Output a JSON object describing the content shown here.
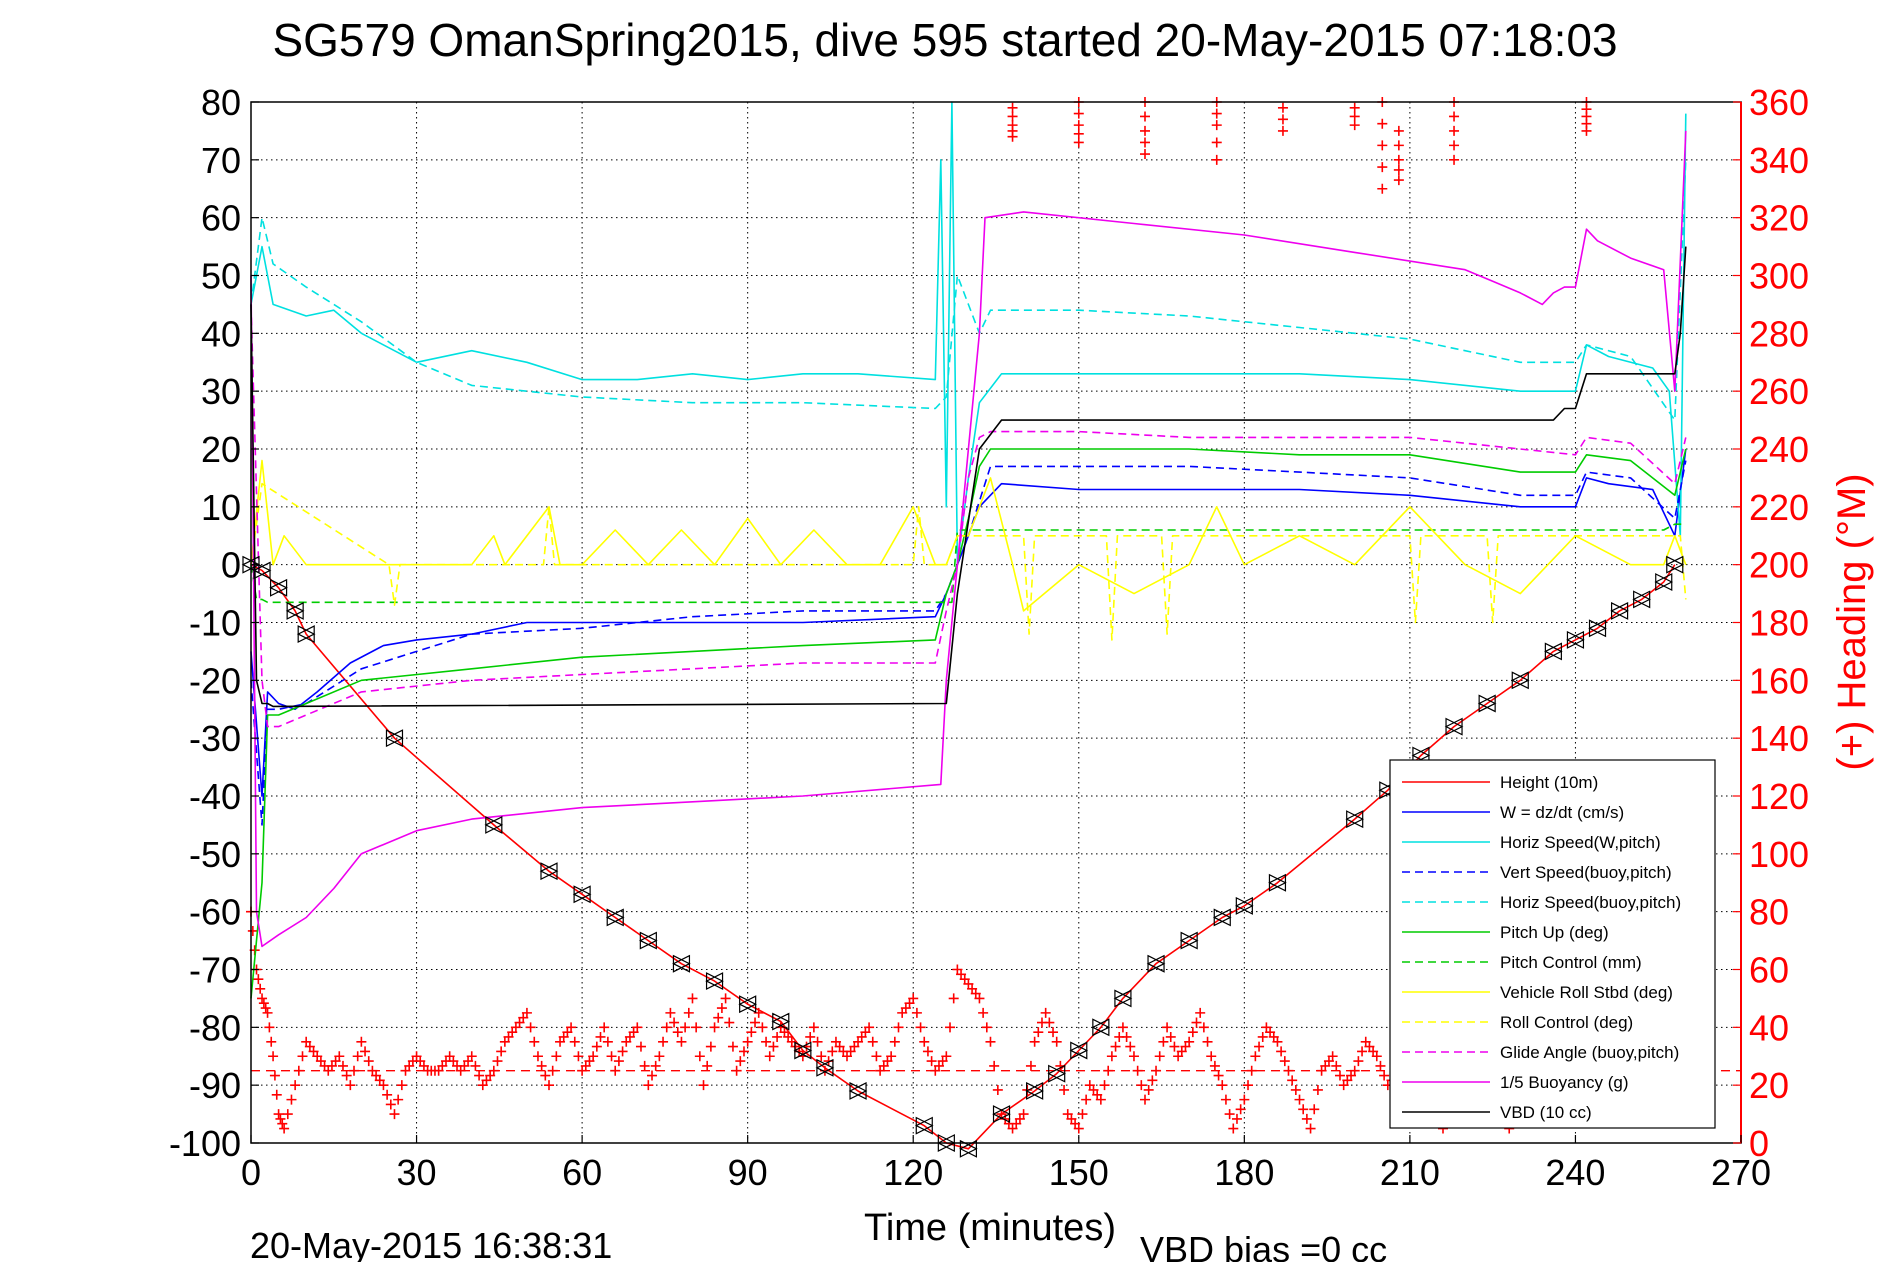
{
  "chart_data": {
    "type": "line",
    "title": "SG579 OmanSpring2015, dive 595 started 20-May-2015 07:18:03",
    "xlabel": "Time (minutes)",
    "ylabel_right": "(+) Heading (°M)",
    "footer_left": "20-May-2015 16:38:31",
    "footer_right": "VBD bias =0 cc",
    "xlim": [
      0,
      270
    ],
    "ylim": [
      -100,
      80
    ],
    "ylim_right": [
      0,
      360
    ],
    "grid": true,
    "legend_position": "lower-right",
    "xticks": [
      "0",
      "30",
      "60",
      "90",
      "120",
      "150",
      "180",
      "210",
      "240",
      "270"
    ],
    "yticks": [
      "80",
      "70",
      "60",
      "50",
      "40",
      "30",
      "20",
      "10",
      "0",
      "-10",
      "-20",
      "-30",
      "-40",
      "-50",
      "-60",
      "-70",
      "-80",
      "-90",
      "-100"
    ],
    "yticks_right": [
      "360",
      "340",
      "320",
      "300",
      "280",
      "260",
      "240",
      "220",
      "200",
      "180",
      "160",
      "140",
      "120",
      "100",
      "80",
      "60",
      "40",
      "20",
      "0"
    ],
    "series": [
      {
        "name": "Height (10m)",
        "color": "#ff0000",
        "dash": "solid",
        "marker": "triangle",
        "x": [
          0,
          2,
          5,
          8,
          10,
          26,
          44,
          54,
          60,
          66,
          72,
          78,
          84,
          90,
          96,
          100,
          104,
          110,
          122,
          126,
          130,
          136,
          142,
          146,
          150,
          154,
          158,
          164,
          170,
          176,
          180,
          186,
          200,
          206,
          212,
          218,
          224,
          230,
          236,
          240,
          244,
          248,
          252,
          256,
          258
        ],
        "y": [
          0,
          -1,
          -4,
          -8,
          -12,
          -30,
          -45,
          -53,
          -57,
          -61,
          -65,
          -69,
          -72,
          -76,
          -79,
          -84,
          -87,
          -91,
          -97,
          -100,
          -101,
          -95,
          -91,
          -88,
          -84,
          -80,
          -75,
          -69,
          -65,
          -61,
          -59,
          -55,
          -44,
          -39,
          -33,
          -28,
          -24,
          -20,
          -15,
          -13,
          -11,
          -8,
          -6,
          -3,
          0
        ]
      },
      {
        "name": "W = dz/dt (cm/s)",
        "color": "#0000ff",
        "dash": "solid",
        "x": [
          0,
          2,
          3,
          5,
          8,
          12,
          18,
          24,
          30,
          40,
          50,
          60,
          80,
          100,
          124,
          126,
          128,
          132,
          136,
          150,
          170,
          190,
          210,
          230,
          240,
          242,
          246,
          254,
          258,
          260
        ],
        "y": [
          -15,
          -40,
          -22,
          -24,
          -25,
          -22,
          -17,
          -14,
          -13,
          -12,
          -10,
          -10,
          -10,
          -10,
          -9,
          -5,
          0,
          10,
          14,
          13,
          13,
          13,
          12,
          10,
          10,
          15,
          14,
          13,
          5,
          20
        ]
      },
      {
        "name": "Horiz Speed(W,pitch)",
        "color": "#00e0e0",
        "dash": "solid",
        "x": [
          0,
          2,
          4,
          10,
          15,
          20,
          30,
          40,
          50,
          60,
          70,
          80,
          90,
          100,
          110,
          124,
          125,
          126,
          127,
          128,
          130,
          132,
          136,
          150,
          170,
          190,
          210,
          230,
          240,
          242,
          246,
          254,
          257,
          259,
          260
        ],
        "y": [
          45,
          55,
          45,
          43,
          44,
          40,
          35,
          37,
          35,
          32,
          32,
          33,
          32,
          33,
          33,
          32,
          70,
          10,
          80,
          0,
          15,
          28,
          33,
          33,
          33,
          33,
          32,
          30,
          30,
          38,
          36,
          34,
          30,
          5,
          78
        ]
      },
      {
        "name": "Vert Speed(buoy,pitch)",
        "color": "#0000ff",
        "dash": "dashed",
        "x": [
          0,
          2,
          3,
          5,
          10,
          20,
          40,
          60,
          80,
          100,
          124,
          126,
          130,
          134,
          150,
          170,
          190,
          210,
          230,
          240,
          242,
          250,
          258,
          260
        ],
        "y": [
          -20,
          -45,
          -25,
          -25,
          -24,
          -18,
          -12,
          -11,
          -9,
          -8,
          -8,
          -5,
          5,
          17,
          17,
          17,
          16,
          15,
          12,
          12,
          16,
          15,
          8,
          18
        ]
      },
      {
        "name": "Horiz Speed(buoy,pitch)",
        "color": "#00e0e0",
        "dash": "dashed",
        "x": [
          0,
          2,
          4,
          10,
          20,
          30,
          40,
          60,
          80,
          100,
          124,
          126,
          128,
          130,
          132,
          134,
          150,
          170,
          190,
          210,
          230,
          240,
          242,
          250,
          258,
          260
        ],
        "y": [
          45,
          60,
          52,
          48,
          42,
          35,
          31,
          29,
          28,
          28,
          27,
          29,
          50,
          45,
          40,
          44,
          44,
          43,
          41,
          39,
          35,
          35,
          38,
          36,
          25,
          70
        ]
      },
      {
        "name": "Pitch Up (deg)",
        "color": "#00cc00",
        "dash": "solid",
        "x": [
          0,
          2,
          3,
          5,
          10,
          20,
          40,
          60,
          80,
          100,
          124,
          126,
          128,
          130,
          132,
          134,
          150,
          170,
          190,
          210,
          230,
          240,
          242,
          250,
          258,
          260
        ],
        "y": [
          -75,
          -55,
          -26,
          -26,
          -24,
          -20,
          -18,
          -16,
          -15,
          -14,
          -13,
          -5,
          0,
          8,
          17,
          20,
          20,
          20,
          19,
          19,
          16,
          16,
          19,
          18,
          12,
          20
        ]
      },
      {
        "name": "Pitch Control (mm)",
        "color": "#00cc00",
        "dash": "dashed",
        "x": [
          0,
          1,
          2,
          3,
          125,
          127,
          128,
          256,
          258,
          260
        ],
        "y": [
          0,
          -6,
          -6,
          -6.5,
          -6.5,
          -6.5,
          6,
          6,
          7,
          7
        ]
      },
      {
        "name": "Vehicle Roll Stbd (deg)",
        "color": "#ffff00",
        "dash": "solid",
        "x": [
          0,
          2,
          4,
          6,
          10,
          20,
          40,
          44,
          46,
          54,
          56,
          60,
          66,
          72,
          78,
          84,
          90,
          96,
          102,
          108,
          114,
          120,
          124,
          126,
          128,
          130,
          134,
          138,
          140,
          150,
          160,
          170,
          175,
          180,
          190,
          200,
          210,
          220,
          230,
          240,
          250,
          256,
          258,
          260
        ],
        "y": [
          0,
          18,
          0,
          5,
          0,
          0,
          0,
          5,
          0,
          10,
          0,
          0,
          6,
          0,
          6,
          0,
          8,
          0,
          6,
          0,
          0,
          10,
          0,
          0,
          5,
          5,
          15,
          0,
          -8,
          0,
          -5,
          0,
          10,
          0,
          5,
          0,
          10,
          0,
          -5,
          5,
          0,
          0,
          5,
          0
        ]
      },
      {
        "name": "Roll Control (deg)",
        "color": "#ffff00",
        "dash": "dashed",
        "x": [
          0,
          2,
          25,
          26,
          27,
          40,
          53,
          54,
          55,
          100,
          120,
          121,
          122,
          126,
          128,
          140,
          141,
          142,
          150,
          155,
          156,
          157,
          165,
          166,
          167,
          210,
          211,
          212,
          224,
          225,
          226,
          259,
          260
        ],
        "y": [
          0,
          14,
          0,
          -7,
          0,
          0,
          0,
          10,
          0,
          0,
          0,
          10,
          0,
          0,
          5,
          5,
          -12,
          5,
          5,
          5,
          -13,
          5,
          5,
          -12,
          5,
          5,
          -10,
          5,
          5,
          -10,
          5,
          5,
          -6
        ]
      },
      {
        "name": "Glide Angle (buoy,pitch)",
        "color": "#ee00ee",
        "dash": "dashed",
        "x": [
          0,
          2,
          3,
          5,
          10,
          20,
          40,
          60,
          80,
          100,
          124,
          126,
          128,
          130,
          132,
          134,
          150,
          170,
          190,
          210,
          230,
          240,
          242,
          250,
          258,
          260
        ],
        "y": [
          45,
          -20,
          -28,
          -28,
          -26,
          -22,
          -20,
          -19,
          -18,
          -17,
          -17,
          -8,
          0,
          15,
          22,
          23,
          23,
          22,
          22,
          22,
          20,
          19,
          22,
          21,
          14,
          22
        ]
      },
      {
        "name": "1/5 Buoyancy (g)",
        "color": "#ee00ee",
        "dash": "solid",
        "x": [
          0,
          1,
          2,
          5,
          10,
          15,
          20,
          30,
          40,
          60,
          80,
          100,
          125,
          126,
          128,
          132,
          133,
          140,
          160,
          180,
          200,
          220,
          225,
          230,
          234,
          236,
          238,
          240,
          242,
          244,
          250,
          256,
          258,
          260
        ],
        "y": [
          50,
          -60,
          -66,
          -64,
          -61,
          -56,
          -50,
          -46,
          -44,
          -42,
          -41,
          -40,
          -38,
          -20,
          0,
          40,
          60,
          61,
          59,
          57,
          54,
          51,
          49,
          47,
          45,
          47,
          48,
          48,
          58,
          56,
          53,
          51,
          30,
          75
        ]
      },
      {
        "name": "VBD (10 cc)",
        "color": "#000000",
        "dash": "solid",
        "x": [
          0,
          1,
          2,
          3,
          4,
          126,
          128,
          132,
          136,
          138,
          236,
          238,
          240,
          242,
          258,
          259,
          260
        ],
        "y": [
          45,
          -20,
          -24,
          -24,
          -24.5,
          -24,
          -5,
          20,
          25,
          25,
          25,
          27,
          27,
          33,
          33,
          40,
          55
        ]
      }
    ],
    "heading_series": {
      "name": "(+) Heading (°M)",
      "color": "#ff0000",
      "marker": "+",
      "mean_heading": 25,
      "x": [
        0,
        1,
        2,
        3,
        4,
        5,
        6,
        8,
        10,
        12,
        14,
        16,
        18,
        20,
        22,
        24,
        26,
        28,
        30,
        32,
        34,
        36,
        38,
        40,
        42,
        44,
        46,
        48,
        50,
        52,
        54,
        56,
        58,
        60,
        62,
        64,
        66,
        68,
        70,
        72,
        74,
        76,
        78,
        80,
        82,
        84,
        86,
        88,
        90,
        92,
        94,
        96,
        98,
        100,
        102,
        104,
        106,
        108,
        110,
        112,
        114,
        116,
        118,
        120,
        122,
        124,
        126,
        128,
        130,
        132,
        134,
        136,
        138,
        140,
        142,
        144,
        146,
        148,
        150,
        152,
        154,
        156,
        158,
        160,
        162,
        164,
        166,
        168,
        170,
        172,
        174,
        176,
        178,
        180,
        182,
        184,
        186,
        188,
        190,
        192,
        194,
        196,
        198,
        200,
        202,
        204,
        206,
        208,
        210,
        212,
        214,
        216,
        218,
        220,
        222,
        224,
        226,
        228,
        230,
        232,
        234,
        236,
        238,
        240,
        242,
        244,
        246,
        248,
        250,
        252,
        254,
        256,
        258,
        260
      ],
      "y": [
        80,
        60,
        50,
        45,
        30,
        10,
        5,
        20,
        35,
        30,
        25,
        30,
        20,
        35,
        25,
        20,
        10,
        25,
        30,
        25,
        25,
        30,
        25,
        30,
        20,
        25,
        35,
        40,
        45,
        30,
        20,
        35,
        40,
        25,
        30,
        40,
        25,
        35,
        40,
        20,
        30,
        45,
        35,
        50,
        20,
        40,
        50,
        25,
        35,
        45,
        30,
        40,
        35,
        30,
        40,
        25,
        35,
        30,
        35,
        40,
        25,
        30,
        45,
        50,
        35,
        25,
        30,
        60,
        55,
        50,
        35,
        10,
        5,
        10,
        35,
        45,
        35,
        10,
        5,
        20,
        15,
        30,
        40,
        30,
        15,
        25,
        40,
        30,
        35,
        45,
        30,
        20,
        5,
        15,
        30,
        40,
        35,
        25,
        15,
        5,
        25,
        30,
        20,
        25,
        35,
        30,
        20,
        25,
        15,
        10,
        20,
        5,
        25,
        15,
        30,
        20,
        10,
        5,
        25,
        35,
        15,
        25,
        35,
        30,
        20,
        15,
        25,
        30,
        35,
        25,
        20,
        10,
        30,
        25
      ]
    },
    "heading_wraps": [
      {
        "x": 138,
        "y": [
          358,
          352,
          348
        ]
      },
      {
        "x": 150,
        "y": [
          360,
          352,
          346
        ]
      },
      {
        "x": 162,
        "y": [
          360,
          350,
          342
        ]
      },
      {
        "x": 175,
        "y": [
          360,
          352,
          340
        ]
      },
      {
        "x": 187,
        "y": [
          358,
          350
        ]
      },
      {
        "x": 200,
        "y": [
          358,
          352
        ]
      },
      {
        "x": 205,
        "y": [
          360,
          345,
          330
        ]
      },
      {
        "x": 208,
        "y": [
          350,
          340,
          333
        ]
      },
      {
        "x": 218,
        "y": [
          360,
          350,
          340
        ]
      },
      {
        "x": 242,
        "y": [
          360,
          355,
          350
        ]
      }
    ]
  }
}
